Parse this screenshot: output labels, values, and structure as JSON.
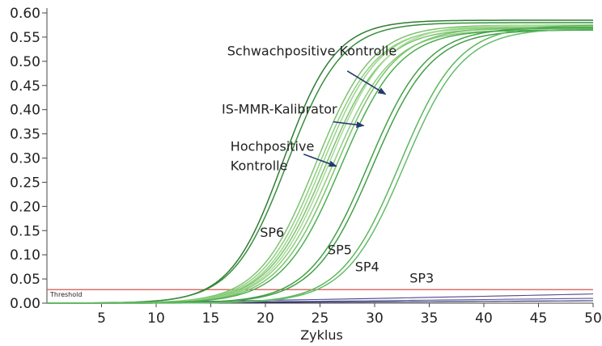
{
  "chart_data": {
    "type": "line",
    "title": "",
    "xlabel": "Zyklus",
    "ylabel": "",
    "xlim": [
      0,
      50
    ],
    "ylim": [
      0,
      0.6
    ],
    "x_ticks": [
      5,
      10,
      15,
      20,
      25,
      30,
      35,
      40,
      45,
      50
    ],
    "x_tick_labels": [
      "5",
      "10",
      "15",
      "20",
      "25",
      "30",
      "35",
      "40",
      "45",
      "50"
    ],
    "y_ticks": [
      0,
      0.05,
      0.1,
      0.15,
      0.2,
      0.25,
      0.3,
      0.35,
      0.4,
      0.45,
      0.5,
      0.55,
      0.6
    ],
    "y_tick_labels": [
      "0.00",
      "0.05",
      "0.10",
      "0.15",
      "0.20",
      "0.25",
      "0.30",
      "0.35",
      "0.40",
      "0.45",
      "0.50",
      "0.55",
      "0.60"
    ],
    "grid": false,
    "threshold": {
      "label": "Threshold",
      "value": 0.028,
      "color": "#d9534f"
    },
    "series": [
      {
        "midpoint": 21.6,
        "slope": 2.4,
        "plateau": 0.585,
        "color": "#2e7d32"
      },
      {
        "midpoint": 22.0,
        "slope": 2.5,
        "plateau": 0.58,
        "color": "#388e3c"
      },
      {
        "midpoint": 24.6,
        "slope": 2.6,
        "plateau": 0.575,
        "color": "#7cc36f"
      },
      {
        "midpoint": 24.9,
        "slope": 2.6,
        "plateau": 0.57,
        "color": "#8fce7f"
      },
      {
        "midpoint": 25.2,
        "slope": 2.6,
        "plateau": 0.572,
        "color": "#9ad48a"
      },
      {
        "midpoint": 25.5,
        "slope": 2.65,
        "plateau": 0.568,
        "color": "#7cc36f"
      },
      {
        "midpoint": 25.8,
        "slope": 2.65,
        "plateau": 0.575,
        "color": "#a5da96"
      },
      {
        "midpoint": 26.1,
        "slope": 2.7,
        "plateau": 0.565,
        "color": "#8fce7f"
      },
      {
        "midpoint": 26.5,
        "slope": 2.7,
        "plateau": 0.57,
        "color": "#7cc36f"
      },
      {
        "midpoint": 26.9,
        "slope": 2.7,
        "plateau": 0.565,
        "color": "#4caf50"
      },
      {
        "midpoint": 29.4,
        "slope": 2.7,
        "plateau": 0.57,
        "color": "#43a047"
      },
      {
        "midpoint": 29.8,
        "slope": 2.7,
        "plateau": 0.565,
        "color": "#43a047"
      },
      {
        "midpoint": 32.3,
        "slope": 2.7,
        "plateau": 0.575,
        "color": "#5cb85c"
      },
      {
        "midpoint": 32.7,
        "slope": 2.7,
        "plateau": 0.568,
        "color": "#66bb6a"
      }
    ],
    "baselines": [
      {
        "start": 0.0,
        "end": 0.019,
        "color": "#4a4a8c"
      },
      {
        "start": 0.0,
        "end": 0.01,
        "color": "#5a5a9a"
      },
      {
        "start": 0.0,
        "end": 0.005,
        "color": "#2c2c6c"
      }
    ],
    "curve_labels": [
      {
        "text": "SP6",
        "x": 19.5,
        "y": 0.137
      },
      {
        "text": "SP5",
        "x": 25.7,
        "y": 0.101
      },
      {
        "text": "SP4",
        "x": 28.2,
        "y": 0.066
      },
      {
        "text": "SP3",
        "x": 33.2,
        "y": 0.043
      }
    ],
    "annotations": [
      {
        "text": "Schwachpositive Kontrolle",
        "x": 16.5,
        "y": 0.512,
        "arrow_from": [
          27.5,
          0.48
        ],
        "arrow_to": [
          31.0,
          0.432
        ]
      },
      {
        "text": "IS-MMR-Kalibrator",
        "x": 16.0,
        "y": 0.392,
        "arrow_from": [
          26.2,
          0.375
        ],
        "arrow_to": [
          29.0,
          0.367
        ]
      },
      {
        "text": "Hochpositive",
        "x": 16.8,
        "y": 0.315,
        "arrow_from": [
          23.5,
          0.308
        ],
        "arrow_to": [
          26.5,
          0.283
        ]
      },
      {
        "text": "Kontrolle",
        "x": 16.8,
        "y": 0.275
      }
    ]
  }
}
